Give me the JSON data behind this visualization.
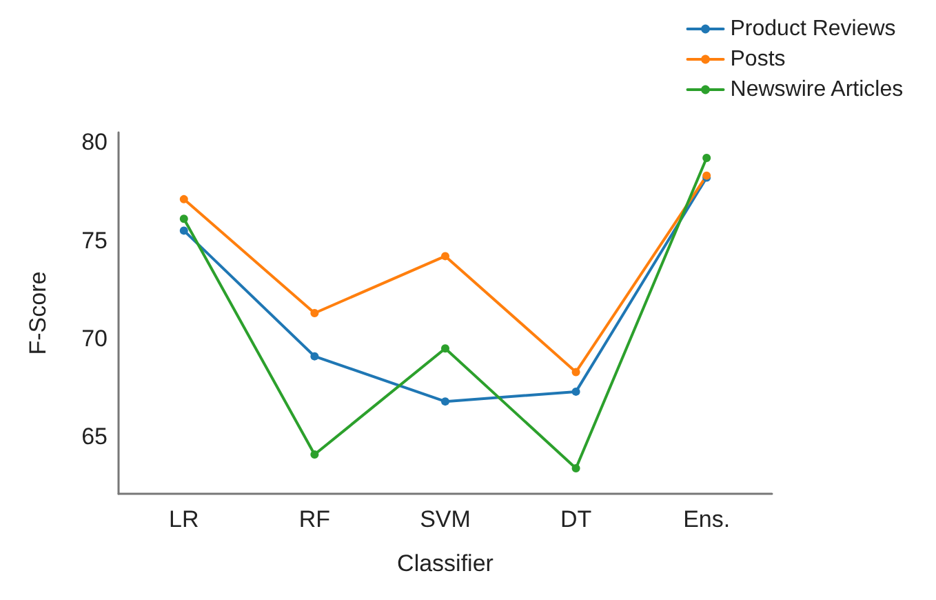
{
  "chart_data": {
    "type": "line",
    "xlabel": "Classifier",
    "ylabel": "F-Score",
    "categories": [
      "LR",
      "RF",
      "SVM",
      "DT",
      "Ens."
    ],
    "series": [
      {
        "name": "Product Reviews",
        "color": "#1f77b4",
        "values": [
          75.5,
          69.1,
          66.8,
          67.3,
          78.2
        ]
      },
      {
        "name": "Posts",
        "color": "#ff7f0e",
        "values": [
          77.1,
          71.3,
          74.2,
          68.3,
          78.3
        ]
      },
      {
        "name": "Newswire Articles",
        "color": "#2ca02c",
        "values": [
          76.1,
          64.1,
          69.5,
          63.4,
          79.2
        ]
      }
    ],
    "ylim": [
      62.1,
      80.5
    ],
    "yticks": [
      65,
      70,
      75,
      80
    ],
    "grid": false,
    "legend": "top right",
    "marker": "circle",
    "line_style": "solid"
  }
}
